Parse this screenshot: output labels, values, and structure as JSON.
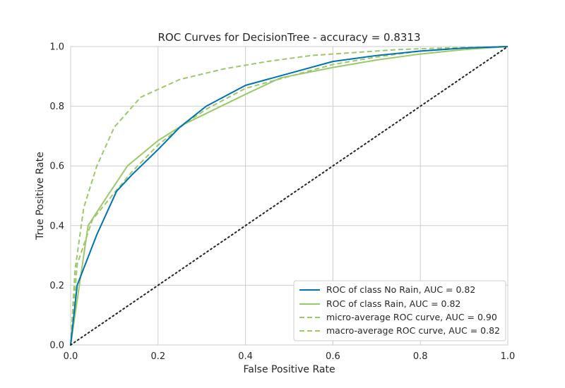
{
  "chart_data": {
    "type": "line",
    "title": "ROC Curves for DecisionTree - accuracy = 0.8313",
    "xlabel": "False Positive Rate",
    "ylabel": "True Positive Rate",
    "xlim": [
      0.0,
      1.0
    ],
    "ylim": [
      0.0,
      1.0
    ],
    "xticks": [
      "0.0",
      "0.2",
      "0.4",
      "0.6",
      "0.8",
      "1.0"
    ],
    "yticks": [
      "0.0",
      "0.2",
      "0.4",
      "0.6",
      "0.8",
      "1.0"
    ],
    "grid": true,
    "legend_position": "lower-right",
    "series": [
      {
        "name": "ROC of class No Rain, AUC = 0.82",
        "color": "#0072b2",
        "style": "solid",
        "x": [
          0.0,
          0.015,
          0.06,
          0.105,
          0.14,
          0.2,
          0.25,
          0.31,
          0.4,
          0.5,
          0.6,
          0.7,
          0.8,
          0.9,
          1.0
        ],
        "y": [
          0.0,
          0.2,
          0.37,
          0.515,
          0.57,
          0.655,
          0.73,
          0.8,
          0.87,
          0.91,
          0.95,
          0.97,
          0.985,
          0.995,
          1.0
        ]
      },
      {
        "name": "ROC of class Rain, AUC = 0.82",
        "color": "#9bc96a",
        "style": "solid",
        "x": [
          0.0,
          0.04,
          0.08,
          0.13,
          0.2,
          0.26,
          0.33,
          0.4,
          0.48,
          0.6,
          0.7,
          0.8,
          0.9,
          1.0
        ],
        "y": [
          0.0,
          0.4,
          0.49,
          0.6,
          0.685,
          0.74,
          0.79,
          0.84,
          0.895,
          0.93,
          0.955,
          0.975,
          0.99,
          1.0
        ]
      },
      {
        "name": "micro-average ROC curve, AUC = 0.90",
        "color": "#9bc96a",
        "style": "dashed",
        "x": [
          0.0,
          0.01,
          0.03,
          0.06,
          0.1,
          0.16,
          0.25,
          0.35,
          0.45,
          0.55,
          0.65,
          0.75,
          0.85,
          1.0
        ],
        "y": [
          0.0,
          0.25,
          0.46,
          0.6,
          0.73,
          0.83,
          0.89,
          0.925,
          0.95,
          0.97,
          0.98,
          0.99,
          0.995,
          1.0
        ]
      },
      {
        "name": "macro-average ROC curve, AUC = 0.82",
        "color": "#9bc96a",
        "style": "dashed",
        "x": [
          0.0,
          0.015,
          0.05,
          0.1,
          0.14,
          0.2,
          0.26,
          0.31,
          0.4,
          0.5,
          0.6,
          0.7,
          0.8,
          0.9,
          1.0
        ],
        "y": [
          0.0,
          0.27,
          0.42,
          0.51,
          0.58,
          0.67,
          0.74,
          0.79,
          0.86,
          0.9,
          0.94,
          0.965,
          0.985,
          0.995,
          1.0
        ]
      }
    ],
    "reference_line": {
      "x": [
        0.0,
        1.0
      ],
      "y": [
        0.0,
        1.0
      ],
      "style": "dotted",
      "color": "#222222"
    }
  }
}
